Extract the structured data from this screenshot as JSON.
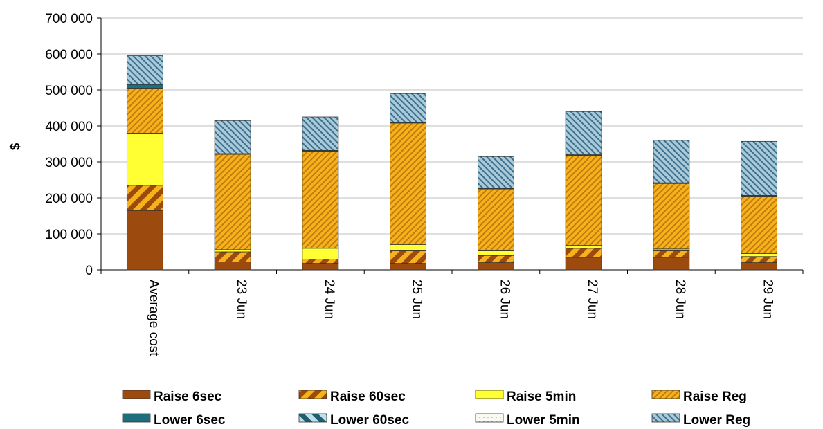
{
  "chart_data": {
    "type": "bar",
    "stacked": true,
    "ylabel": "$",
    "xlabel": "",
    "ylim": [
      0,
      700000
    ],
    "y_ticks": [
      0,
      100000,
      200000,
      300000,
      400000,
      500000,
      600000,
      700000
    ],
    "y_tick_labels": [
      "0",
      "100 000",
      "200 000",
      "300 000",
      "400 000",
      "500 000",
      "600 000",
      "700 000"
    ],
    "categories": [
      "Average cost",
      "23 Jun",
      "24 Jun",
      "25 Jun",
      "26 Jun",
      "27 Jun",
      "28 Jun",
      "29 Jun"
    ],
    "grid": "horizontal",
    "legend_position": "bottom",
    "series": [
      {
        "name": "Raise 6sec",
        "pattern": "solid",
        "color": "#9C4A0E",
        "values": [
          165000,
          22000,
          18000,
          18000,
          20000,
          35000,
          35000,
          20000
        ]
      },
      {
        "name": "Raise 60sec",
        "pattern": "wide-stripe",
        "color": "#E8A317",
        "values": [
          70000,
          28000,
          12000,
          35000,
          20000,
          25000,
          18000,
          17000
        ]
      },
      {
        "name": "Raise 5min",
        "pattern": "solid",
        "color": "#FFFF33",
        "values": [
          145000,
          6000,
          30000,
          17000,
          13000,
          8000,
          5000,
          8000
        ]
      },
      {
        "name": "Raise Reg",
        "pattern": "fine-stripe",
        "color": "#E8A317",
        "values": [
          125000,
          265000,
          270000,
          338000,
          172000,
          250000,
          182000,
          160000
        ]
      },
      {
        "name": "Lower 6sec",
        "pattern": "solid",
        "color": "#1F6E7C",
        "values": [
          10000,
          2000,
          2000,
          2000,
          2000,
          2000,
          2000,
          2000
        ]
      },
      {
        "name": "Lower 60sec",
        "pattern": "wide-stripe",
        "color": "#2E8AA0",
        "values": [
          0,
          0,
          0,
          0,
          0,
          0,
          0,
          0
        ]
      },
      {
        "name": "Lower 5min",
        "pattern": "dots",
        "color": "#F2F2E8",
        "values": [
          0,
          0,
          0,
          0,
          0,
          0,
          0,
          0
        ]
      },
      {
        "name": "Lower Reg",
        "pattern": "fine-stripe",
        "color": "#7BA8C0",
        "values": [
          80000,
          92000,
          93000,
          80000,
          88000,
          120000,
          118000,
          150000
        ]
      }
    ]
  }
}
